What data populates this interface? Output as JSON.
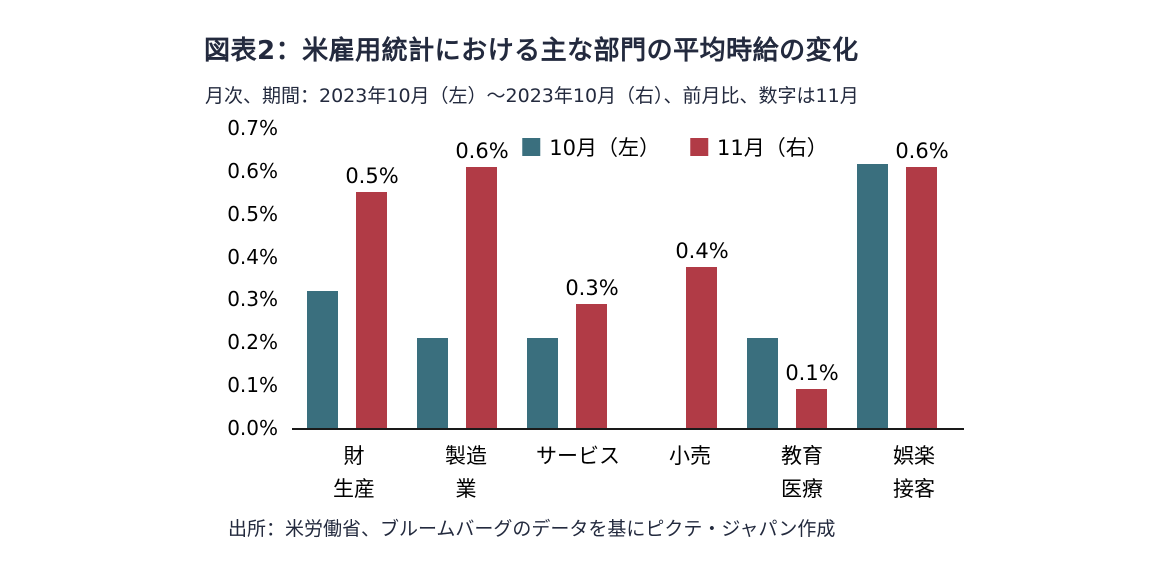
{
  "header": {
    "title": "図表2：米雇用統計における主な部門の平均時給の変化",
    "subtitle": "月次、期間：2023年10月（左）～2023年10月（右）、前月比、数字は11月"
  },
  "footer": {
    "source": "出所：米労働省、ブルームバーグのデータを基にピクテ・ジャパン作成"
  },
  "colors": {
    "october_bar": "#3a6f7e",
    "november_bar": "#b13b46",
    "title_text": "#232a3e",
    "axis_line": "#1a1a1a"
  },
  "chart_data": {
    "type": "bar",
    "title": "図表2：米雇用統計における主な部門の平均時給の変化",
    "subtitle": "月次、期間：2023年10月（左）～2023年10月（右）、前月比、数字は11月",
    "categories": [
      "財生産",
      "製造業",
      "サービス",
      "小売",
      "教育医療",
      "娯楽接客"
    ],
    "category_lines": [
      [
        "財",
        "生産"
      ],
      [
        "製造",
        "業"
      ],
      [
        "サービス"
      ],
      [
        "小売"
      ],
      [
        "教育",
        "医療"
      ],
      [
        "娯楽",
        "接客"
      ]
    ],
    "series": [
      {
        "name": "10月（左）",
        "color": "#3a6f7e",
        "values": [
          0.32,
          0.21,
          0.21,
          0,
          0.21,
          0.615
        ]
      },
      {
        "name": "11月（右）",
        "color": "#b13b46",
        "values": [
          0.55,
          0.61,
          0.29,
          0.375,
          0.09,
          0.61
        ]
      }
    ],
    "data_labels": [
      "0.5%",
      "0.6%",
      "0.3%",
      "0.4%",
      "0.1%",
      "0.6%"
    ],
    "ylabel": "",
    "xlabel": "",
    "ylim": [
      0,
      0.7
    ],
    "ytick_step": 0.1,
    "ytick_labels": [
      "0.0%",
      "0.1%",
      "0.2%",
      "0.3%",
      "0.4%",
      "0.5%",
      "0.6%",
      "0.7%"
    ],
    "legend_position": "top-center",
    "grid": false,
    "unit": "percent_mom"
  }
}
